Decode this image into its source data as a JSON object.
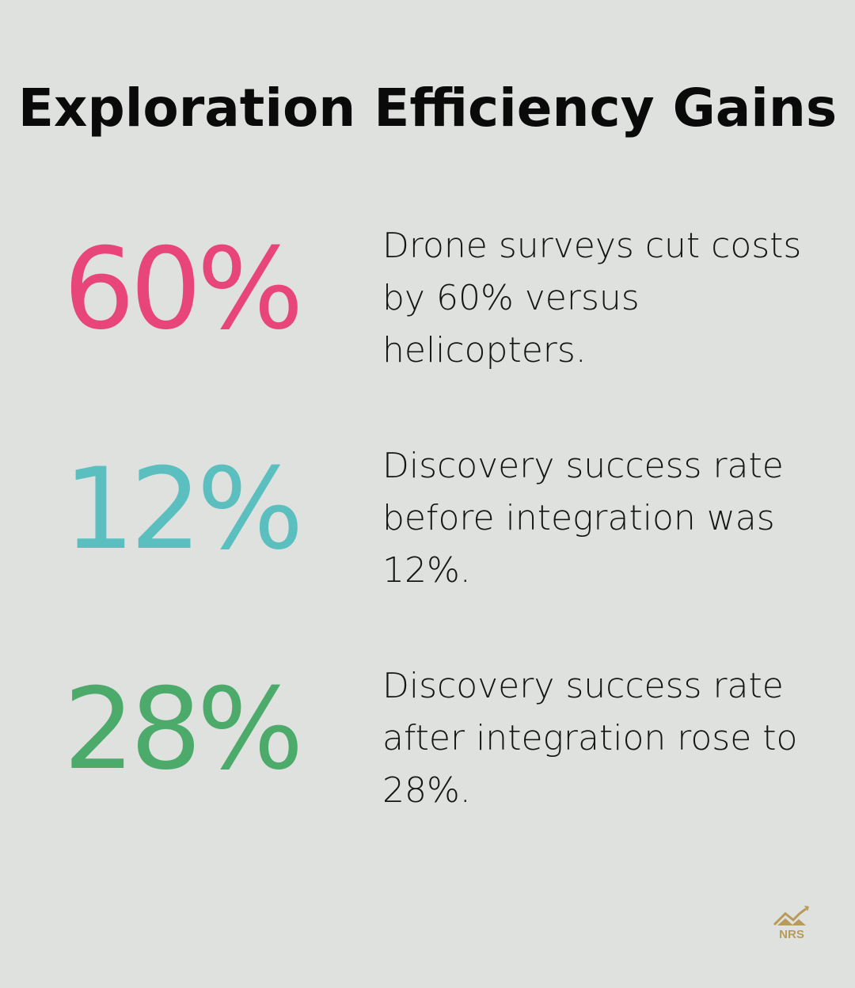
{
  "title": "Exploration Efficiency Gains",
  "stats": [
    {
      "value": "60%",
      "color": "#e8457a",
      "description": "Drone surveys cut costs by 60% versus helicopters."
    },
    {
      "value": "12%",
      "color": "#5bbfc0",
      "description": "Discovery success rate before integration was 12%."
    },
    {
      "value": "28%",
      "color": "#4caa6b",
      "description": "Discovery success rate after integration rose to 28%."
    }
  ],
  "logo": {
    "text": "NRS",
    "color": "#b89a5a"
  }
}
